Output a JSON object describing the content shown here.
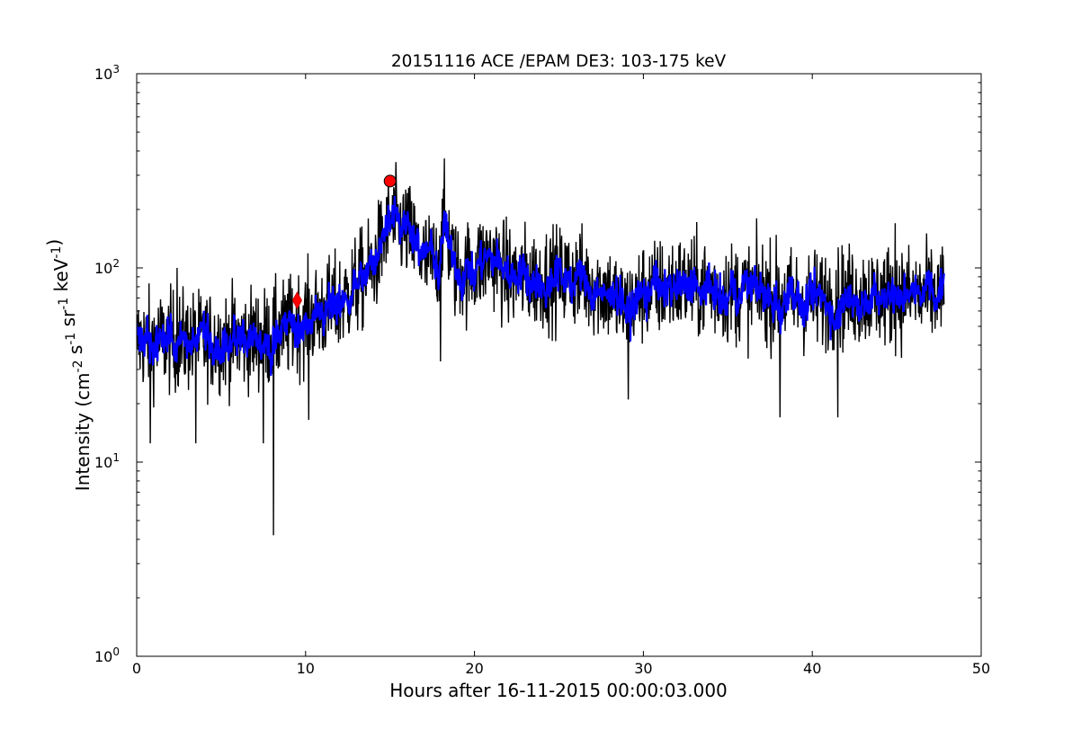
{
  "chart_data": {
    "type": "line",
    "title": "20151116 ACE /EPAM DE3: 103-175 keV",
    "xlabel": "Hours after 16-11-2015 00:00:03.000",
    "ylabel": {
      "prefix": "Intensity (cm",
      "parts": [
        {
          "base": "cm",
          "exp": "-2"
        },
        {
          "base": " s",
          "exp": "-1"
        },
        {
          "base": " sr",
          "exp": "-1"
        },
        {
          "base": " keV",
          "exp": "-1"
        }
      ],
      "suffix": ")"
    },
    "xlim": [
      0,
      50
    ],
    "ylim": [
      1,
      1000
    ],
    "yscale": "log",
    "grid": false,
    "x_ticks": [
      {
        "value": 0,
        "label": "0"
      },
      {
        "value": 10,
        "label": "10"
      },
      {
        "value": 20,
        "label": "20"
      },
      {
        "value": 30,
        "label": "30"
      },
      {
        "value": 40,
        "label": "40"
      },
      {
        "value": 50,
        "label": "50"
      }
    ],
    "y_ticks": [
      {
        "value": 1,
        "base": "10",
        "exp": "0"
      },
      {
        "value": 10,
        "base": "10",
        "exp": "1"
      },
      {
        "value": 100,
        "base": "10",
        "exp": "2"
      },
      {
        "value": 1000,
        "base": "10",
        "exp": "3"
      }
    ],
    "series": [
      {
        "style": "raw",
        "color": "#000000",
        "x_start": 0,
        "x_end": 47.8,
        "center_profile": [
          [
            0,
            42
          ],
          [
            5,
            42
          ],
          [
            8,
            44
          ],
          [
            9.5,
            52
          ],
          [
            12,
            65
          ],
          [
            14,
            100
          ],
          [
            15,
            175
          ],
          [
            16,
            155
          ],
          [
            17,
            110
          ],
          [
            17.8,
            105
          ],
          [
            18.2,
            175
          ],
          [
            18.9,
            95
          ],
          [
            19.5,
            95
          ],
          [
            21,
            115
          ],
          [
            22,
            90
          ],
          [
            24,
            88
          ],
          [
            26,
            90
          ],
          [
            28,
            75
          ],
          [
            29,
            60
          ],
          [
            30,
            75
          ],
          [
            32,
            82
          ],
          [
            35,
            75
          ],
          [
            37,
            75
          ],
          [
            38.3,
            70
          ],
          [
            39.5,
            68
          ],
          [
            43,
            72
          ],
          [
            47.8,
            72
          ]
        ],
        "spikes": [
          {
            "x": 8.1,
            "y": 4.2
          },
          {
            "x": 0.8,
            "y": 12.5
          },
          {
            "x": 3.5,
            "y": 12.5
          },
          {
            "x": 7.5,
            "y": 12.5
          },
          {
            "x": 10.2,
            "y": 16.5
          },
          {
            "x": 18,
            "y": 33
          },
          {
            "x": 29.1,
            "y": 21
          },
          {
            "x": 38.1,
            "y": 17
          },
          {
            "x": 41.5,
            "y": 17
          },
          {
            "x": 14.9,
            "y": 280
          },
          {
            "x": 44.9,
            "y": 170
          },
          {
            "x": 2.4,
            "y": 100
          }
        ]
      },
      {
        "style": "smoothed",
        "color": "#0000ff",
        "x_start": 0,
        "x_end": 47.8
      }
    ],
    "markers": [
      {
        "shape": "circle",
        "x": 15.0,
        "y": 280,
        "color": "#ff0000"
      },
      {
        "shape": "diamond",
        "x": 9.5,
        "y": 68,
        "color": "#ff0000"
      }
    ]
  }
}
